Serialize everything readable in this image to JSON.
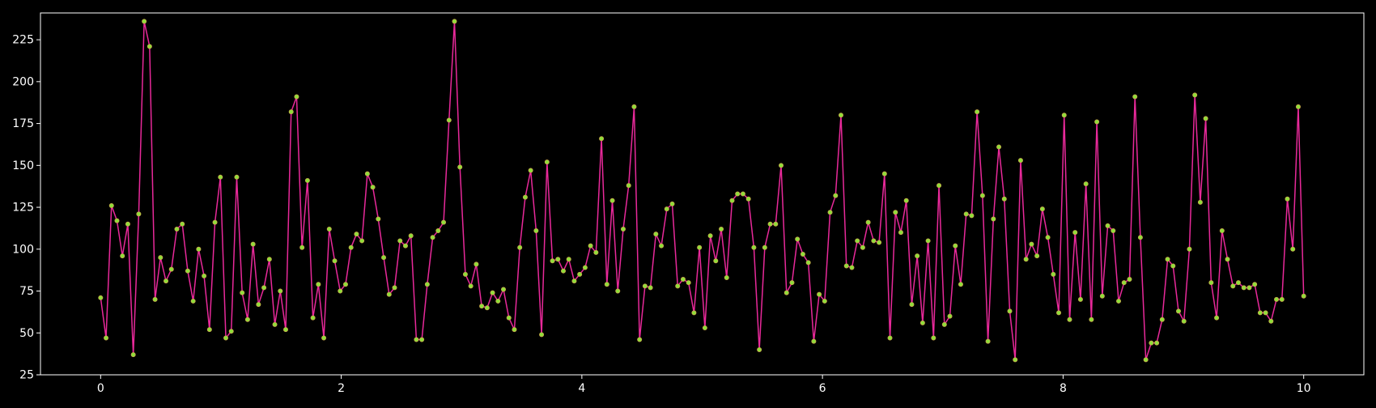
{
  "chart_data": {
    "type": "line",
    "title": "",
    "xlabel": "",
    "ylabel": "",
    "xlim": [
      -0.5,
      10.5
    ],
    "ylim": [
      25,
      241
    ],
    "x_ticks": [
      0,
      2,
      4,
      6,
      8,
      10
    ],
    "x_tick_labels": [
      "0",
      "2",
      "4",
      "6",
      "8",
      "10"
    ],
    "y_ticks": [
      25,
      50,
      75,
      100,
      125,
      150,
      175,
      200,
      225
    ],
    "y_tick_labels": [
      "25",
      "50",
      "75",
      "100",
      "125",
      "150",
      "175",
      "200",
      "225"
    ],
    "grid": false,
    "legend": "none",
    "colors": {
      "background": "#000000",
      "axes": "#ffffff",
      "line": "#e8299a",
      "marker_fill": "#8ee03a",
      "marker_edge": "#c9a84a"
    },
    "series": [
      {
        "x_start": 0,
        "x_end": 10,
        "values": [
          71,
          47,
          126,
          117,
          96,
          115,
          37,
          121,
          236,
          221,
          70,
          95,
          81,
          88,
          112,
          115,
          87,
          69,
          100,
          84,
          52,
          116,
          143,
          47,
          51,
          143,
          74,
          58,
          103,
          67,
          77,
          94,
          55,
          75,
          52,
          182,
          191,
          101,
          141,
          59,
          79,
          47,
          112,
          93,
          75,
          79,
          101,
          109,
          105,
          145,
          137,
          118,
          95,
          73,
          77,
          105,
          102,
          108,
          46,
          46,
          79,
          107,
          111,
          116,
          177,
          236,
          149,
          85,
          78,
          91,
          66,
          65,
          74,
          69,
          76,
          59,
          52,
          101,
          131,
          147,
          111,
          49,
          152,
          93,
          94,
          87,
          94,
          81,
          85,
          89,
          102,
          98,
          166,
          79,
          129,
          75,
          112,
          138,
          185,
          46,
          78,
          77,
          109,
          102,
          124,
          127,
          78,
          82,
          80,
          62,
          101,
          53,
          108,
          93,
          112,
          83,
          129,
          133,
          133,
          130,
          101,
          40,
          101,
          115,
          115,
          150,
          74,
          80,
          106,
          97,
          92,
          45,
          73,
          69,
          122,
          132,
          180,
          90,
          89,
          105,
          101,
          116,
          105,
          104,
          145,
          47,
          122,
          110,
          129,
          67,
          96,
          56,
          105,
          47,
          138,
          55,
          60,
          102,
          79,
          121,
          120,
          182,
          132,
          45,
          118,
          161,
          130,
          63,
          34,
          153,
          94,
          103,
          96,
          124,
          107,
          85,
          62,
          180,
          58,
          110,
          70,
          139,
          58,
          176,
          72,
          114,
          111,
          69,
          80,
          82,
          191,
          107,
          34,
          44,
          44,
          58,
          94,
          90,
          63,
          57,
          100,
          192,
          128,
          178,
          80,
          59,
          111,
          94,
          78,
          80,
          77,
          77,
          79,
          62,
          62,
          57,
          70,
          70,
          130,
          100,
          185,
          72
        ]
      }
    ]
  }
}
